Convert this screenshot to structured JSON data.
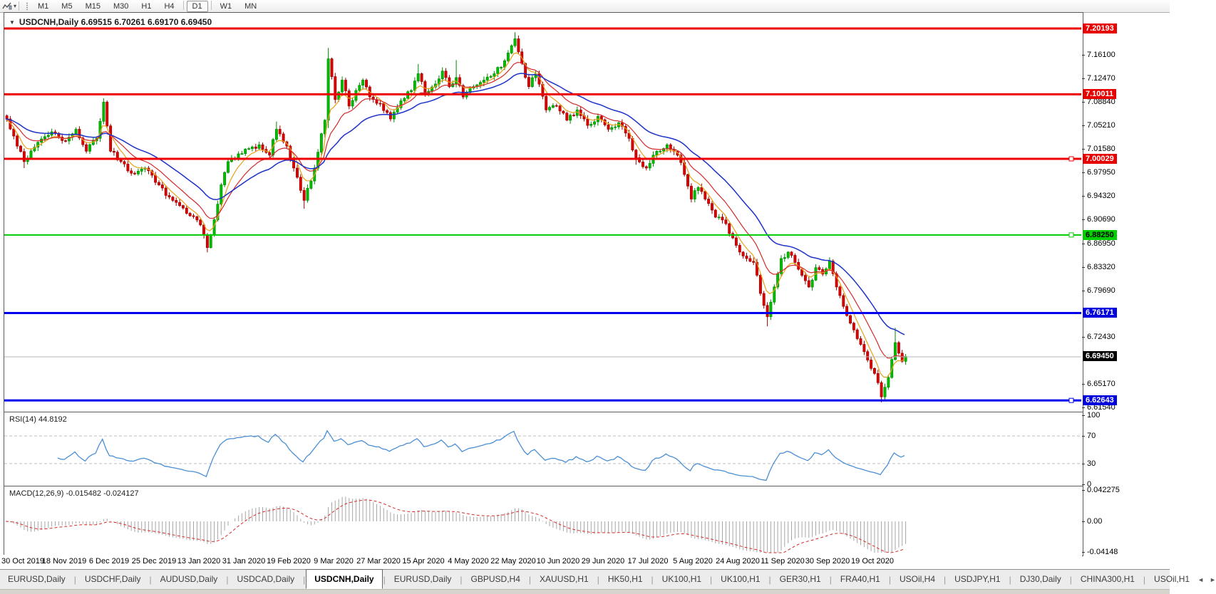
{
  "toolbar": {
    "dropdown_icon": "▾",
    "timeframes": [
      {
        "label": "M1",
        "active": false
      },
      {
        "label": "M5",
        "active": false
      },
      {
        "label": "M15",
        "active": false
      },
      {
        "label": "M30",
        "active": false
      },
      {
        "label": "H1",
        "active": false
      },
      {
        "label": "H4",
        "active": false
      },
      {
        "label": "D1",
        "active": true
      },
      {
        "label": "W1",
        "active": false
      },
      {
        "label": "MN",
        "active": false
      }
    ]
  },
  "chart": {
    "collapse_icon": "▼",
    "title": "USDCNH,Daily  6.69515 6.70261 6.69170 6.69450"
  },
  "rsi": {
    "label": "RSI(14) 44.8192"
  },
  "macd": {
    "label": "MACD(12,26,9) -0.015482 -0.024127"
  },
  "tabs": {
    "items": [
      {
        "label": "EURUSD,Daily",
        "active": false
      },
      {
        "label": "USDCHF,Daily",
        "active": false
      },
      {
        "label": "AUDUSD,Daily",
        "active": false
      },
      {
        "label": "USDCAD,Daily",
        "active": false
      },
      {
        "label": "USDCNH,Daily",
        "active": true
      },
      {
        "label": "EURUSD,Daily",
        "active": false
      },
      {
        "label": "GBPUSD,H4",
        "active": false
      },
      {
        "label": "XAUUSD,H1",
        "active": false
      },
      {
        "label": "HK50,H1",
        "active": false
      },
      {
        "label": "UK100,H1",
        "active": false
      },
      {
        "label": "UK100,H1",
        "active": false
      },
      {
        "label": "GER30,H1",
        "active": false
      },
      {
        "label": "FRA40,H1",
        "active": false
      },
      {
        "label": "USOil,H4",
        "active": false
      },
      {
        "label": "USDJPY,H1",
        "active": false
      },
      {
        "label": "DJ30,Daily",
        "active": false
      },
      {
        "label": "CHINA300,H1",
        "active": false
      },
      {
        "label": "USOil,H1",
        "active": false
      }
    ],
    "scroll_left": "◄",
    "scroll_right": "►"
  },
  "chart_data": {
    "type": "candlestick",
    "symbol": "USDCNH",
    "timeframe": "Daily",
    "ohlc_display": {
      "open": "6.69515",
      "high": "6.70261",
      "low": "6.69170",
      "close": "6.69450"
    },
    "price_axis_ticks": [
      {
        "price": 7.161,
        "label": "7.16100"
      },
      {
        "price": 7.1247,
        "label": "7.12470"
      },
      {
        "price": 7.0884,
        "label": "7.08840"
      },
      {
        "price": 7.0521,
        "label": "7.05210"
      },
      {
        "price": 7.0158,
        "label": "7.01580"
      },
      {
        "price": 6.9795,
        "label": "6.97950"
      },
      {
        "price": 6.9432,
        "label": "6.94320"
      },
      {
        "price": 6.9069,
        "label": "6.90690"
      },
      {
        "price": 6.8695,
        "label": "6.86950"
      },
      {
        "price": 6.8332,
        "label": "6.83320"
      },
      {
        "price": 6.7969,
        "label": "6.79690"
      },
      {
        "price": 6.7243,
        "label": "6.72430"
      },
      {
        "price": 6.6517,
        "label": "6.65170"
      },
      {
        "price": 6.6154,
        "label": "6.61540"
      }
    ],
    "level_badges": [
      {
        "price": 7.20193,
        "label": "7.20193",
        "bg": "#e60000",
        "fg": "#ffffff"
      },
      {
        "price": 7.10011,
        "label": "7.10011",
        "bg": "#e60000",
        "fg": "#ffffff"
      },
      {
        "price": 7.00029,
        "label": "7.00029",
        "bg": "#e60000",
        "fg": "#ffffff"
      },
      {
        "price": 6.8825,
        "label": "6.88250",
        "bg": "#00d000",
        "fg": "#000000"
      },
      {
        "price": 6.76171,
        "label": "6.76171",
        "bg": "#0000dd",
        "fg": "#ffffff"
      },
      {
        "price": 6.6945,
        "label": "6.69450",
        "bg": "#000000",
        "fg": "#ffffff"
      },
      {
        "price": 6.62643,
        "label": "6.62643",
        "bg": "#0000dd",
        "fg": "#ffffff"
      }
    ],
    "sr_lines": [
      {
        "price": 7.20193,
        "color": "#ee0000",
        "width": 3,
        "handle": false
      },
      {
        "price": 7.10011,
        "color": "#ee0000",
        "width": 3,
        "handle": false
      },
      {
        "price": 7.00029,
        "color": "#ee0000",
        "width": 3,
        "handle": true
      },
      {
        "price": 6.8825,
        "color": "#00cc00",
        "width": 2,
        "handle": true
      },
      {
        "price": 6.76171,
        "color": "#0000ee",
        "width": 3,
        "handle": false
      },
      {
        "price": 6.62643,
        "color": "#0000ee",
        "width": 3,
        "handle": true
      }
    ],
    "current_price": 6.6945,
    "current_price_line_color": "#b4b4b4",
    "x_labels": [
      "30 Oct 2019",
      "18 Nov 2019",
      "6 Dec 2019",
      "25 Dec 2019",
      "13 Jan 2020",
      "31 Jan 2020",
      "19 Feb 2020",
      "9 Mar 2020",
      "27 Mar 2020",
      "15 Apr 2020",
      "4 May 2020",
      "22 May 2020",
      "10 Jun 2020",
      "29 Jun 2020",
      "17 Jul 2020",
      "5 Aug 2020",
      "24 Aug 2020",
      "11 Sep 2020",
      "30 Sep 2020",
      "19 Oct 2020"
    ],
    "price_keypoints": [
      {
        "i": 0,
        "p": 7.062
      },
      {
        "i": 3,
        "p": 7.02
      },
      {
        "i": 5,
        "p": 6.996,
        "l": 6.986
      },
      {
        "i": 9,
        "p": 7.026
      },
      {
        "i": 13,
        "p": 7.042
      },
      {
        "i": 17,
        "p": 7.028
      },
      {
        "i": 20,
        "p": 7.046
      },
      {
        "i": 23,
        "p": 7.012
      },
      {
        "i": 26,
        "p": 7.032
      },
      {
        "i": 28,
        "p": 7.088,
        "h": 7.094
      },
      {
        "i": 30,
        "p": 7.012
      },
      {
        "i": 33,
        "p": 6.996
      },
      {
        "i": 36,
        "p": 6.978
      },
      {
        "i": 40,
        "p": 6.986
      },
      {
        "i": 44,
        "p": 6.96
      },
      {
        "i": 48,
        "p": 6.936
      },
      {
        "i": 52,
        "p": 6.916
      },
      {
        "i": 56,
        "p": 6.898
      },
      {
        "i": 58,
        "p": 6.863,
        "l": 6.8555
      },
      {
        "i": 60,
        "p": 6.906
      },
      {
        "i": 62,
        "p": 6.96
      },
      {
        "i": 64,
        "p": 6.996
      },
      {
        "i": 67,
        "p": 7.008
      },
      {
        "i": 70,
        "p": 7.016
      },
      {
        "i": 73,
        "p": 7.022
      },
      {
        "i": 76,
        "p": 7.006
      },
      {
        "i": 78,
        "p": 7.046,
        "h": 7.058
      },
      {
        "i": 81,
        "p": 7.02
      },
      {
        "i": 83,
        "p": 6.986
      },
      {
        "i": 86,
        "p": 6.936,
        "l": 6.923
      },
      {
        "i": 89,
        "p": 6.986
      },
      {
        "i": 92,
        "p": 7.06
      },
      {
        "i": 93,
        "p": 7.155,
        "h": 7.172,
        "l": 7.048
      },
      {
        "i": 95,
        "p": 7.092
      },
      {
        "i": 97,
        "p": 7.122
      },
      {
        "i": 99,
        "p": 7.082
      },
      {
        "i": 101,
        "p": 7.106
      },
      {
        "i": 103,
        "p": 7.122
      },
      {
        "i": 105,
        "p": 7.096
      },
      {
        "i": 108,
        "p": 7.086
      },
      {
        "i": 111,
        "p": 7.062
      },
      {
        "i": 114,
        "p": 7.09
      },
      {
        "i": 117,
        "p": 7.106
      },
      {
        "i": 119,
        "p": 7.132,
        "h": 7.147
      },
      {
        "i": 121,
        "p": 7.102
      },
      {
        "i": 124,
        "p": 7.116
      },
      {
        "i": 126,
        "p": 7.136
      },
      {
        "i": 128,
        "p": 7.112
      },
      {
        "i": 130,
        "p": 7.126,
        "h": 7.153
      },
      {
        "i": 132,
        "p": 7.096
      },
      {
        "i": 135,
        "p": 7.112
      },
      {
        "i": 138,
        "p": 7.122
      },
      {
        "i": 141,
        "p": 7.132
      },
      {
        "i": 144,
        "p": 7.152
      },
      {
        "i": 147,
        "p": 7.186,
        "h": 7.1962
      },
      {
        "i": 149,
        "p": 7.148
      },
      {
        "i": 151,
        "p": 7.112
      },
      {
        "i": 153,
        "p": 7.132
      },
      {
        "i": 156,
        "p": 7.076
      },
      {
        "i": 159,
        "p": 7.082
      },
      {
        "i": 162,
        "p": 7.06
      },
      {
        "i": 165,
        "p": 7.076
      },
      {
        "i": 168,
        "p": 7.052
      },
      {
        "i": 171,
        "p": 7.066
      },
      {
        "i": 174,
        "p": 7.046
      },
      {
        "i": 177,
        "p": 7.056
      },
      {
        "i": 180,
        "p": 7.032
      },
      {
        "i": 182,
        "p": 7.002,
        "l": 6.991
      },
      {
        "i": 185,
        "p": 6.986
      },
      {
        "i": 188,
        "p": 7.012
      },
      {
        "i": 191,
        "p": 7.022
      },
      {
        "i": 194,
        "p": 7.006
      },
      {
        "i": 196,
        "p": 6.976
      },
      {
        "i": 198,
        "p": 6.938
      },
      {
        "i": 200,
        "p": 6.956
      },
      {
        "i": 202,
        "p": 6.938
      },
      {
        "i": 205,
        "p": 6.91
      },
      {
        "i": 208,
        "p": 6.9
      },
      {
        "i": 210,
        "p": 6.878
      },
      {
        "i": 212,
        "p": 6.856
      },
      {
        "i": 214,
        "p": 6.846
      },
      {
        "i": 216,
        "p": 6.84
      },
      {
        "i": 218,
        "p": 6.792
      },
      {
        "i": 220,
        "p": 6.756,
        "l": 6.741
      },
      {
        "i": 222,
        "p": 6.802
      },
      {
        "i": 224,
        "p": 6.846
      },
      {
        "i": 226,
        "p": 6.856
      },
      {
        "i": 228,
        "p": 6.84
      },
      {
        "i": 230,
        "p": 6.82
      },
      {
        "i": 232,
        "p": 6.802
      },
      {
        "i": 234,
        "p": 6.832
      },
      {
        "i": 236,
        "p": 6.822
      },
      {
        "i": 238,
        "p": 6.842
      },
      {
        "i": 240,
        "p": 6.802
      },
      {
        "i": 242,
        "p": 6.772
      },
      {
        "i": 244,
        "p": 6.746
      },
      {
        "i": 246,
        "p": 6.722
      },
      {
        "i": 248,
        "p": 6.702
      },
      {
        "i": 250,
        "p": 6.676
      },
      {
        "i": 252,
        "p": 6.654
      },
      {
        "i": 253,
        "p": 6.632,
        "l": 6.6235
      },
      {
        "i": 255,
        "p": 6.662
      },
      {
        "i": 257,
        "p": 6.716,
        "h": 6.739
      },
      {
        "i": 259,
        "p": 6.687
      },
      {
        "i": 260,
        "p": 6.6945
      }
    ],
    "moving_averages": [
      {
        "period": 6,
        "color": "#e8a117"
      },
      {
        "period": 13,
        "color": "#d42a2a"
      },
      {
        "period": 28,
        "color": "#1d32c8"
      }
    ],
    "rsi_indicator": {
      "period": 14,
      "value": 44.8192,
      "line_color": "#4a8fd4",
      "level_color": "#bdbdbd",
      "axis_labels": [
        {
          "v": 100,
          "label": "100"
        },
        {
          "v": 70,
          "label": "70"
        },
        {
          "v": 30,
          "label": "30"
        },
        {
          "v": 0,
          "label": "0"
        }
      ],
      "dashed_levels": [
        70,
        30
      ]
    },
    "macd_indicator": {
      "fast": 12,
      "slow": 26,
      "signal": 9,
      "value": -0.015482,
      "signal_value": -0.024127,
      "hist_color": "#a6a6a6",
      "signal_color": "#d42a2a",
      "axis_labels": [
        {
          "v": 0.042275,
          "label": "0.042275"
        },
        {
          "v": 0,
          "label": "0.00"
        },
        {
          "v": -0.04148,
          "label": "-0.04148"
        }
      ]
    },
    "candle_colors": {
      "bull": "#00c000",
      "bull_border": "#008a00",
      "bear": "#e00000",
      "bear_border": "#9c0000"
    }
  }
}
